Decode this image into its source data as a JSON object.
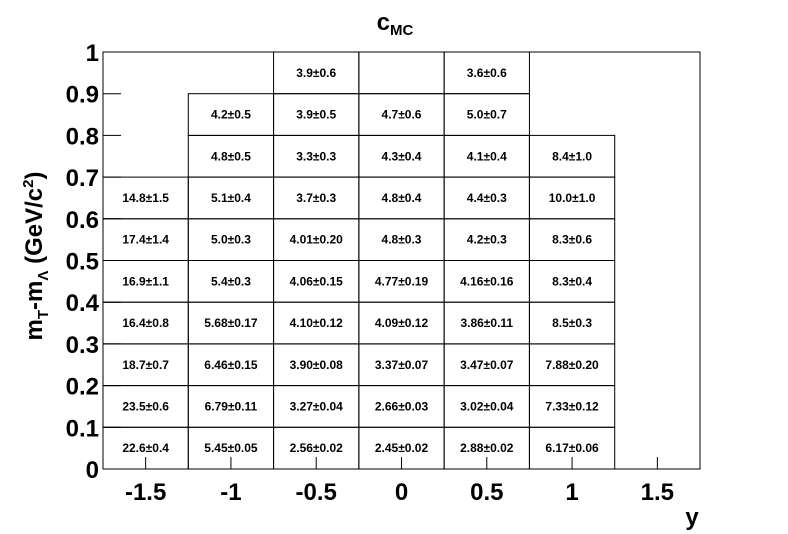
{
  "chart_data": {
    "type": "table",
    "title": "c",
    "title_subscript": "MC",
    "xlabel": "y",
    "ylabel": "m",
    "ylabel_sub1": "T",
    "ylabel_mid": "-m",
    "ylabel_sub2": "Λ",
    "ylabel_unit": " (GeV/c",
    "ylabel_unit_sup": "2",
    "ylabel_unit_close": ")",
    "xlim": [
      -1.75,
      1.75
    ],
    "ylim": [
      0,
      1
    ],
    "x_ticks": [
      {
        "value": -1.5,
        "label": "-1.5"
      },
      {
        "value": -1,
        "label": "-1"
      },
      {
        "value": -0.5,
        "label": "-0.5"
      },
      {
        "value": 0,
        "label": "0"
      },
      {
        "value": 0.5,
        "label": "0.5"
      },
      {
        "value": 1,
        "label": "1"
      },
      {
        "value": 1.5,
        "label": "1.5"
      }
    ],
    "y_ticks": [
      {
        "value": 0,
        "label": "0"
      },
      {
        "value": 0.1,
        "label": "0.1"
      },
      {
        "value": 0.2,
        "label": "0.2"
      },
      {
        "value": 0.3,
        "label": "0.3"
      },
      {
        "value": 0.4,
        "label": "0.4"
      },
      {
        "value": 0.5,
        "label": "0.5"
      },
      {
        "value": 0.6,
        "label": "0.6"
      },
      {
        "value": 0.7,
        "label": "0.7"
      },
      {
        "value": 0.8,
        "label": "0.8"
      },
      {
        "value": 0.9,
        "label": "0.9"
      },
      {
        "value": 1,
        "label": "1"
      }
    ],
    "cells": [
      {
        "x0": -1.75,
        "x1": -1.25,
        "y0": 0.0,
        "y1": 0.1,
        "label": "22.6±0.4"
      },
      {
        "x0": -1.25,
        "x1": -0.75,
        "y0": 0.0,
        "y1": 0.1,
        "label": "5.45±0.05"
      },
      {
        "x0": -0.75,
        "x1": -0.25,
        "y0": 0.0,
        "y1": 0.1,
        "label": "2.56±0.02"
      },
      {
        "x0": -0.25,
        "x1": 0.25,
        "y0": 0.0,
        "y1": 0.1,
        "label": "2.45±0.02"
      },
      {
        "x0": 0.25,
        "x1": 0.75,
        "y0": 0.0,
        "y1": 0.1,
        "label": "2.88±0.02"
      },
      {
        "x0": 0.75,
        "x1": 1.25,
        "y0": 0.0,
        "y1": 0.1,
        "label": "6.17±0.06"
      },
      {
        "x0": -1.75,
        "x1": -1.25,
        "y0": 0.1,
        "y1": 0.2,
        "label": "23.5±0.6"
      },
      {
        "x0": -1.25,
        "x1": -0.75,
        "y0": 0.1,
        "y1": 0.2,
        "label": "6.79±0.11"
      },
      {
        "x0": -0.75,
        "x1": -0.25,
        "y0": 0.1,
        "y1": 0.2,
        "label": "3.27±0.04"
      },
      {
        "x0": -0.25,
        "x1": 0.25,
        "y0": 0.1,
        "y1": 0.2,
        "label": "2.66±0.03"
      },
      {
        "x0": 0.25,
        "x1": 0.75,
        "y0": 0.1,
        "y1": 0.2,
        "label": "3.02±0.04"
      },
      {
        "x0": 0.75,
        "x1": 1.25,
        "y0": 0.1,
        "y1": 0.2,
        "label": "7.33±0.12"
      },
      {
        "x0": -1.75,
        "x1": -1.25,
        "y0": 0.2,
        "y1": 0.3,
        "label": "18.7±0.7"
      },
      {
        "x0": -1.25,
        "x1": -0.75,
        "y0": 0.2,
        "y1": 0.3,
        "label": "6.46±0.15"
      },
      {
        "x0": -0.75,
        "x1": -0.25,
        "y0": 0.2,
        "y1": 0.3,
        "label": "3.90±0.08"
      },
      {
        "x0": -0.25,
        "x1": 0.25,
        "y0": 0.2,
        "y1": 0.3,
        "label": "3.37±0.07"
      },
      {
        "x0": 0.25,
        "x1": 0.75,
        "y0": 0.2,
        "y1": 0.3,
        "label": "3.47±0.07"
      },
      {
        "x0": 0.75,
        "x1": 1.25,
        "y0": 0.2,
        "y1": 0.3,
        "label": "7.88±0.20"
      },
      {
        "x0": -1.75,
        "x1": -1.25,
        "y0": 0.3,
        "y1": 0.4,
        "label": "16.4±0.8"
      },
      {
        "x0": -1.25,
        "x1": -0.75,
        "y0": 0.3,
        "y1": 0.4,
        "label": "5.68±0.17"
      },
      {
        "x0": -0.75,
        "x1": -0.25,
        "y0": 0.3,
        "y1": 0.4,
        "label": "4.10±0.12"
      },
      {
        "x0": -0.25,
        "x1": 0.25,
        "y0": 0.3,
        "y1": 0.4,
        "label": "4.09±0.12"
      },
      {
        "x0": 0.25,
        "x1": 0.75,
        "y0": 0.3,
        "y1": 0.4,
        "label": "3.86±0.11"
      },
      {
        "x0": 0.75,
        "x1": 1.25,
        "y0": 0.3,
        "y1": 0.4,
        "label": "8.5±0.3"
      },
      {
        "x0": -1.75,
        "x1": -1.25,
        "y0": 0.4,
        "y1": 0.5,
        "label": "16.9±1.1"
      },
      {
        "x0": -1.25,
        "x1": -0.75,
        "y0": 0.4,
        "y1": 0.5,
        "label": "5.4±0.3"
      },
      {
        "x0": -0.75,
        "x1": -0.25,
        "y0": 0.4,
        "y1": 0.5,
        "label": "4.06±0.15"
      },
      {
        "x0": -0.25,
        "x1": 0.25,
        "y0": 0.4,
        "y1": 0.5,
        "label": "4.77±0.19"
      },
      {
        "x0": 0.25,
        "x1": 0.75,
        "y0": 0.4,
        "y1": 0.5,
        "label": "4.16±0.16"
      },
      {
        "x0": 0.75,
        "x1": 1.25,
        "y0": 0.4,
        "y1": 0.5,
        "label": "8.3±0.4"
      },
      {
        "x0": -1.75,
        "x1": -1.25,
        "y0": 0.5,
        "y1": 0.6,
        "label": "17.4±1.4"
      },
      {
        "x0": -1.25,
        "x1": -0.75,
        "y0": 0.5,
        "y1": 0.6,
        "label": "5.0±0.3"
      },
      {
        "x0": -0.75,
        "x1": -0.25,
        "y0": 0.5,
        "y1": 0.6,
        "label": "4.01±0.20"
      },
      {
        "x0": -0.25,
        "x1": 0.25,
        "y0": 0.5,
        "y1": 0.6,
        "label": "4.8±0.3"
      },
      {
        "x0": 0.25,
        "x1": 0.75,
        "y0": 0.5,
        "y1": 0.6,
        "label": "4.2±0.3"
      },
      {
        "x0": 0.75,
        "x1": 1.25,
        "y0": 0.5,
        "y1": 0.6,
        "label": "8.3±0.6"
      },
      {
        "x0": -1.75,
        "x1": -1.25,
        "y0": 0.6,
        "y1": 0.7,
        "label": "14.8±1.5"
      },
      {
        "x0": -1.25,
        "x1": -0.75,
        "y0": 0.6,
        "y1": 0.7,
        "label": "5.1±0.4"
      },
      {
        "x0": -0.75,
        "x1": -0.25,
        "y0": 0.6,
        "y1": 0.7,
        "label": "3.7±0.3"
      },
      {
        "x0": -0.25,
        "x1": 0.25,
        "y0": 0.6,
        "y1": 0.7,
        "label": "4.8±0.4"
      },
      {
        "x0": 0.25,
        "x1": 0.75,
        "y0": 0.6,
        "y1": 0.7,
        "label": "4.4±0.3"
      },
      {
        "x0": 0.75,
        "x1": 1.25,
        "y0": 0.6,
        "y1": 0.7,
        "label": "10.0±1.0"
      },
      {
        "x0": -1.25,
        "x1": -0.75,
        "y0": 0.7,
        "y1": 0.8,
        "label": "4.8±0.5"
      },
      {
        "x0": -0.75,
        "x1": -0.25,
        "y0": 0.7,
        "y1": 0.8,
        "label": "3.3±0.3"
      },
      {
        "x0": -0.25,
        "x1": 0.25,
        "y0": 0.7,
        "y1": 0.8,
        "label": "4.3±0.4"
      },
      {
        "x0": 0.25,
        "x1": 0.75,
        "y0": 0.7,
        "y1": 0.8,
        "label": "4.1±0.4"
      },
      {
        "x0": 0.75,
        "x1": 1.25,
        "y0": 0.7,
        "y1": 0.8,
        "label": "8.4±1.0"
      },
      {
        "x0": -1.25,
        "x1": -0.75,
        "y0": 0.8,
        "y1": 0.9,
        "label": "4.2±0.5"
      },
      {
        "x0": -0.75,
        "x1": -0.25,
        "y0": 0.8,
        "y1": 0.9,
        "label": "3.9±0.5"
      },
      {
        "x0": -0.25,
        "x1": 0.25,
        "y0": 0.8,
        "y1": 0.9,
        "label": "4.7±0.6"
      },
      {
        "x0": 0.25,
        "x1": 0.75,
        "y0": 0.8,
        "y1": 0.9,
        "label": "5.0±0.7"
      },
      {
        "x0": -0.75,
        "x1": -0.25,
        "y0": 0.9,
        "y1": 1.0,
        "label": "3.9±0.6"
      },
      {
        "x0": -0.25,
        "x1": 0.25,
        "y0": 0.9,
        "y1": 1.0,
        "label": ""
      },
      {
        "x0": 0.25,
        "x1": 0.75,
        "y0": 0.9,
        "y1": 1.0,
        "label": "3.6±0.6"
      }
    ]
  }
}
